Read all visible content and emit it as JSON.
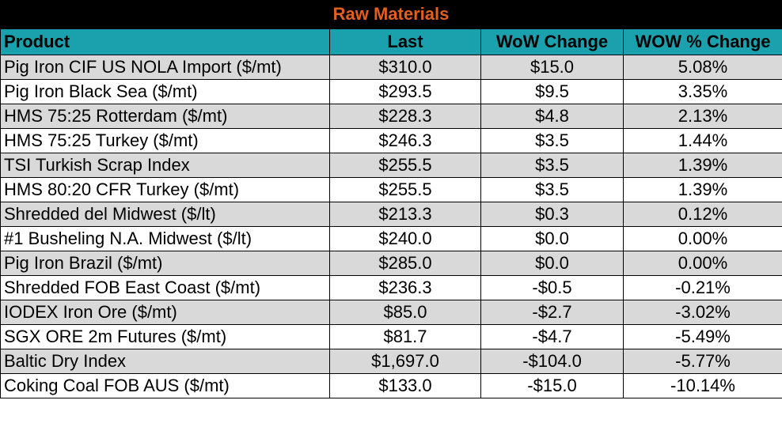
{
  "title": "Raw Materials",
  "colors": {
    "title_bg": "#000000",
    "title_text": "#e0601f",
    "header_bg": "#1aa1ad",
    "shade_row": "#d9d9d9"
  },
  "columns": [
    "Product",
    "Last",
    "WoW Change",
    "WOW % Change"
  ],
  "rows": [
    [
      "Pig Iron CIF US NOLA Import ($/mt)",
      "$310.0",
      "$15.0",
      "5.08%"
    ],
    [
      "Pig Iron Black Sea ($/mt)",
      "$293.5",
      "$9.5",
      "3.35%"
    ],
    [
      "HMS 75:25 Rotterdam ($/mt)",
      "$228.3",
      "$4.8",
      "2.13%"
    ],
    [
      "HMS 75:25 Turkey ($/mt)",
      "$246.3",
      "$3.5",
      "1.44%"
    ],
    [
      "TSI Turkish Scrap Index",
      "$255.5",
      "$3.5",
      "1.39%"
    ],
    [
      "HMS 80:20 CFR Turkey ($/mt)",
      "$255.5",
      "$3.5",
      "1.39%"
    ],
    [
      "Shredded del  Midwest ($/lt)",
      "$213.3",
      "$0.3",
      "0.12%"
    ],
    [
      "#1 Busheling N.A. Midwest ($/lt)",
      "$240.0",
      "$0.0",
      "0.00%"
    ],
    [
      "Pig Iron Brazil ($/mt)",
      "$285.0",
      "$0.0",
      "0.00%"
    ],
    [
      "Shredded FOB East Coast ($/mt)",
      "$236.3",
      "-$0.5",
      "-0.21%"
    ],
    [
      "IODEX  Iron Ore ($/mt)",
      "$85.0",
      "-$2.7",
      "-3.02%"
    ],
    [
      "SGX ORE 2m Futures ($/mt)",
      "$81.7",
      "-$4.7",
      "-5.49%"
    ],
    [
      "Baltic Dry Index",
      "$1,697.0",
      "-$104.0",
      "-5.77%"
    ],
    [
      "Coking Coal FOB AUS ($/mt)",
      "$133.0",
      "-$15.0",
      "-10.14%"
    ]
  ]
}
